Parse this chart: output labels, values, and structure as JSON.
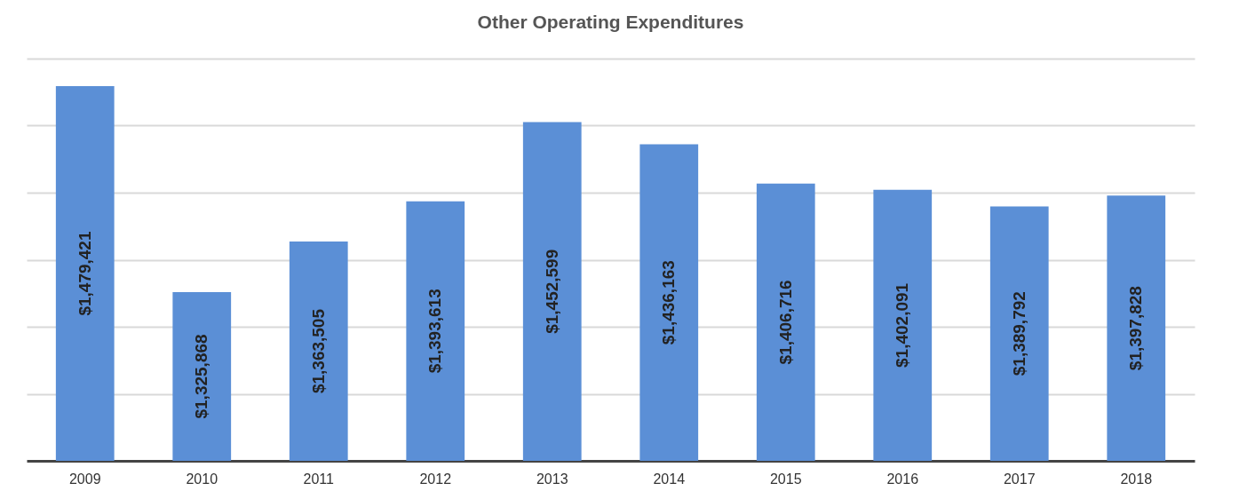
{
  "chart_data": {
    "type": "bar",
    "title": "Other Operating Expenditures",
    "categories": [
      "2009",
      "2010",
      "2011",
      "2012",
      "2013",
      "2014",
      "2015",
      "2016",
      "2017",
      "2018"
    ],
    "values": [
      1479421,
      1325868,
      1363505,
      1393613,
      1452599,
      1436163,
      1406716,
      1402091,
      1389792,
      1397828
    ],
    "value_labels": [
      "$1,479,421",
      "$1,325,868",
      "$1,363,505",
      "$1,393,613",
      "$1,452,599",
      "$1,436,163",
      "$1,406,716",
      "$1,402,091",
      "$1,389,792",
      "$1,397,828"
    ],
    "color": "#5b8fd6",
    "ylim": [
      1200000,
      1500000
    ],
    "yticks": [
      {
        "value": 1250000,
        "label": null
      },
      {
        "value": 1300000,
        "label": null
      },
      {
        "value": 1350000,
        "label": null
      },
      {
        "value": 1400000,
        "label": null
      },
      {
        "value": 1450000,
        "label": null
      },
      {
        "value": 1500000,
        "label": null
      }
    ],
    "grid": "y",
    "tick_labels": "x"
  }
}
